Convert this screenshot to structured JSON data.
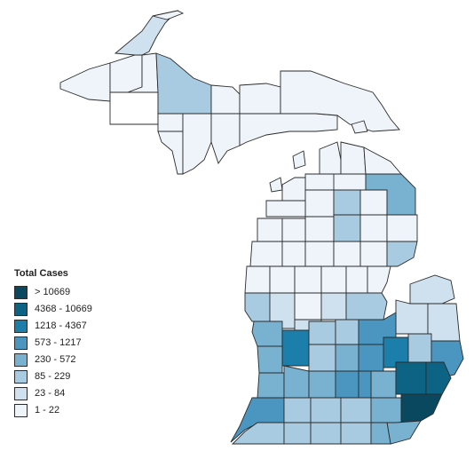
{
  "legend": {
    "title": "Total Cases",
    "bins": [
      {
        "label": "> 10669",
        "color": "#09485f"
      },
      {
        "label": "4368 - 10669",
        "color": "#0d6383"
      },
      {
        "label": "1218 - 4367",
        "color": "#1c7eab"
      },
      {
        "label": "573 - 1217",
        "color": "#4a96c1"
      },
      {
        "label": "230 - 572",
        "color": "#79b1d1"
      },
      {
        "label": "85 - 229",
        "color": "#a9cbe1"
      },
      {
        "label": "23 - 84",
        "color": "#cfe0ee"
      },
      {
        "label": "1 - 22",
        "color": "#eef4fa"
      }
    ]
  },
  "colors": {
    "zero": "#ffffff",
    "stroke": "#2b2b2b"
  }
}
